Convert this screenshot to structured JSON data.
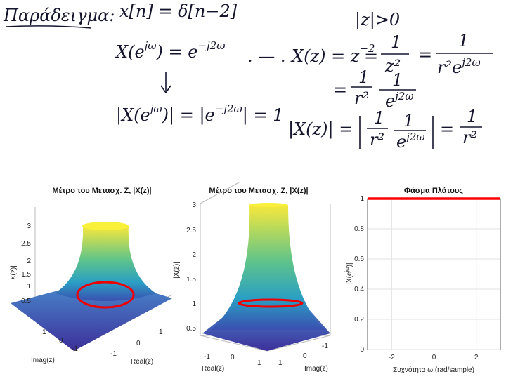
{
  "notes": {
    "title": "Παράδειγμα:",
    "signal": "x[n] = δ[n−2]",
    "roc": "|z|>0",
    "dtft": [
      "X(e",
      "jω",
      ") = e",
      "−j2ω"
    ],
    "dots": ". — .",
    "zt": [
      "X(z) = z",
      "−2",
      "=",
      "1",
      "z²",
      "=",
      "1",
      "r²e",
      "j2ω"
    ],
    "zt2": [
      "=",
      "1",
      "r²",
      "1",
      "e",
      "j2ω"
    ],
    "mag1": [
      "|X(e",
      "jω",
      ")| = |e",
      "−j2ω",
      "| = 1"
    ],
    "mag2": [
      "|X(z)| =",
      "1",
      "r²",
      "1",
      "e",
      "j2ω",
      "=",
      "1",
      "r²"
    ]
  },
  "plots": [
    {
      "title": "Μέτρο του Μετασχ. Z, |X(z)|",
      "ylabel": "|X(z)|",
      "ytick_labels": [
        "3",
        "2.5",
        "2",
        "1.5",
        "1",
        "0.5"
      ],
      "imag_tick_labels": [
        "1",
        "0",
        "-1"
      ],
      "real_tick_labels": [
        "-1",
        "0",
        "1"
      ],
      "imag_label": "Imag(z)",
      "real_label": "Real(z)"
    },
    {
      "title": "Μέτρο του Μετασχ. Z, |X(z)|",
      "ylabel": "|X(z)|",
      "ytick_labels": [
        "3",
        "2.5",
        "2",
        "1.5",
        "1",
        "0.5"
      ],
      "real_tick_labels": [
        "-1",
        "0",
        "1"
      ],
      "imag_tick_labels": [
        "1",
        "0",
        "-1"
      ],
      "real_label": "Real(z)",
      "imag_label": "Imag(z)"
    }
  ],
  "chart_data": {
    "type": "line",
    "title": "Φάσμα Πλάτους",
    "ylabel": [
      "|X(e",
      "jω",
      ")|"
    ],
    "xlabel": "Συχνότητα ω (rad/sample)",
    "x": [
      -3.1416,
      3.1416
    ],
    "values": [
      1,
      1
    ],
    "color": "#ff0000",
    "xlim": [
      -3.1416,
      3.1416
    ],
    "ylim": [
      0,
      1
    ],
    "xticks": [
      -2,
      0,
      2
    ],
    "yticks": [
      0,
      0.2,
      0.4,
      0.6,
      0.8,
      1
    ],
    "grid": true
  }
}
